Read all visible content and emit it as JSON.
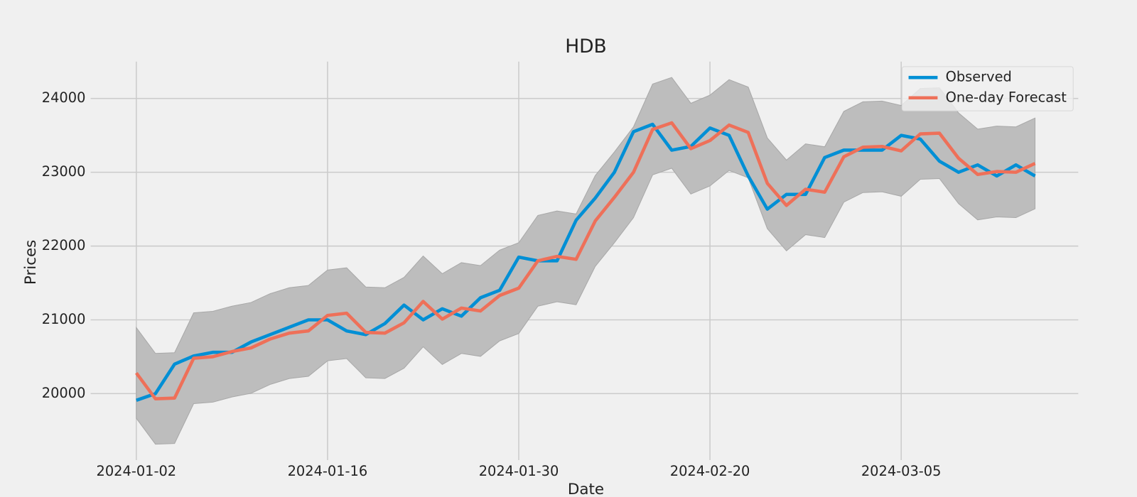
{
  "chart_data": {
    "type": "line",
    "title": "HDB",
    "x_label": "Date",
    "y_label": "Prices",
    "categories": [
      "2024-01-02",
      null,
      null,
      null,
      null,
      null,
      null,
      null,
      null,
      null,
      "2024-01-16",
      null,
      null,
      null,
      null,
      null,
      null,
      null,
      null,
      null,
      "2024-01-30",
      null,
      null,
      null,
      null,
      null,
      null,
      null,
      null,
      null,
      "2024-02-20",
      null,
      null,
      null,
      null,
      null,
      null,
      null,
      null,
      null,
      "2024-03-05",
      null,
      null,
      null,
      null,
      null,
      null,
      null
    ],
    "series": [
      {
        "name": "Observed",
        "color": "#008fd5",
        "values": [
          19910,
          20000,
          20400,
          20510,
          20560,
          20560,
          20700,
          20800,
          20900,
          21000,
          21000,
          20850,
          20800,
          20950,
          21200,
          21000,
          21150,
          21050,
          21300,
          21400,
          21850,
          21800,
          21800,
          22350,
          22650,
          23000,
          23550,
          23650,
          23300,
          23350,
          23600,
          23500,
          22950,
          22500,
          22700,
          22700,
          23200,
          23300,
          23300,
          23300,
          23500,
          23450,
          23150,
          23000,
          23100,
          22950,
          23100,
          22950
        ]
      },
      {
        "name": "One-day Forecast",
        "color": "#ee7059",
        "values": [
          20280,
          19930,
          19940,
          20480,
          20500,
          20570,
          20620,
          20740,
          20820,
          20850,
          21060,
          21090,
          20830,
          20820,
          20960,
          21250,
          21010,
          21160,
          21120,
          21330,
          21430,
          21800,
          21860,
          21820,
          22340,
          22660,
          23000,
          23580,
          23670,
          23320,
          23430,
          23640,
          23540,
          22850,
          22550,
          22770,
          22730,
          23210,
          23340,
          23350,
          23290,
          23520,
          23530,
          23190,
          22970,
          23010,
          23000,
          23120
        ]
      }
    ],
    "band": {
      "color": "#bdbdbd",
      "upper": [
        20895,
        20545,
        20555,
        21095,
        21115,
        21185,
        21235,
        21355,
        21435,
        21465,
        21675,
        21705,
        21445,
        21435,
        21575,
        21865,
        21625,
        21775,
        21735,
        21945,
        22045,
        22415,
        22475,
        22435,
        22955,
        23275,
        23615,
        24195,
        24285,
        23935,
        24045,
        24255,
        24155,
        23465,
        23165,
        23385,
        23345,
        23825,
        23955,
        23965,
        23905,
        24135,
        24145,
        23805,
        23585,
        23625,
        23615,
        23735
      ],
      "lower": [
        19665,
        19315,
        19325,
        19865,
        19885,
        19955,
        20005,
        20125,
        20205,
        20235,
        20445,
        20475,
        20215,
        20205,
        20345,
        20635,
        20395,
        20545,
        20505,
        20715,
        20815,
        21185,
        21245,
        21205,
        21725,
        22045,
        22385,
        22965,
        23055,
        22705,
        22815,
        23025,
        22925,
        22235,
        21935,
        22155,
        22115,
        22595,
        22725,
        22735,
        22675,
        22905,
        22915,
        22575,
        22355,
        22395,
        22385,
        22505
      ]
    },
    "ylim": [
      19100,
      24500
    ],
    "yticks": [
      20000,
      21000,
      22000,
      23000,
      24000
    ],
    "grid": true,
    "legend": "upper right"
  }
}
